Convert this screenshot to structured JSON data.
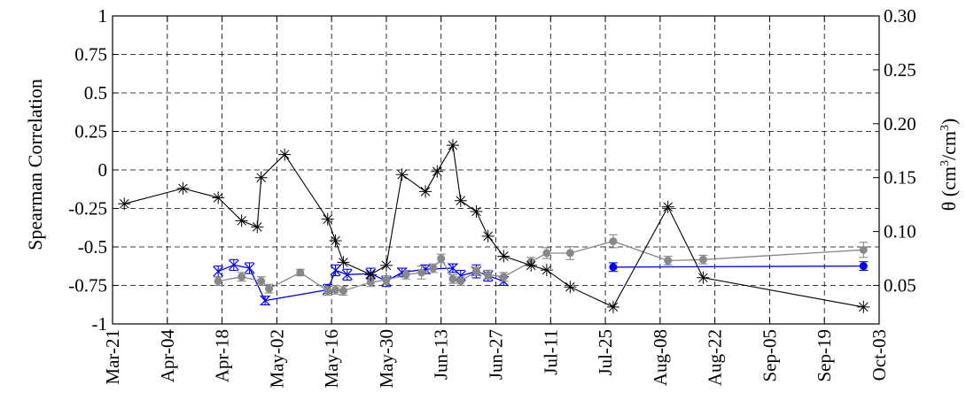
{
  "chart_data": {
    "type": "line",
    "title": "",
    "ylabel": "Spearman Correlation",
    "y2label": "θ (cm³/cm³)",
    "y2label_parts": {
      "base": "θ (cm",
      "exp1": "3",
      "mid": "/cm",
      "exp2": "3",
      "end": ")"
    },
    "xlim": [
      "Mar-21",
      "Oct-03"
    ],
    "ylim": [
      -1,
      1
    ],
    "y2lim": [
      0.0143,
      0.3
    ],
    "grid": true,
    "x_ticks": [
      "Mar-21",
      "Apr-04",
      "Apr-18",
      "May-02",
      "May-16",
      "May-30",
      "Jun-13",
      "Jun-27",
      "Jul-11",
      "Jul-25",
      "Aug-08",
      "Aug-22",
      "Sep-05",
      "Sep-19",
      "Oct-03"
    ],
    "y_ticks": [
      "1",
      "0.75",
      "0.5",
      "0.25",
      "0",
      "-0.25",
      "-0.5",
      "-0.75",
      "-1"
    ],
    "y2_ticks": [
      "0.30",
      "0.25",
      "0.20",
      "0.15",
      "0.10",
      "0.05"
    ],
    "series": [
      {
        "axis": "left",
        "color": "#000000",
        "marker": "asterisk",
        "x": [
          "Mar-24",
          "Apr-08",
          "Apr-17",
          "Apr-23",
          "Apr-27",
          "Apr-28",
          "May-04",
          "May-15",
          "May-17",
          "May-19",
          "May-26",
          "May-30",
          "Jun-03",
          "Jun-09",
          "Jun-12",
          "Jun-16",
          "Jun-18",
          "Jun-22",
          "Jun-25",
          "Jun-29",
          "Jul-06",
          "Jul-10",
          "Jul-16",
          "Jul-27",
          "Aug-10",
          "Aug-19",
          "Sep-29"
        ],
        "values": [
          -0.22,
          -0.12,
          -0.18,
          -0.33,
          -0.37,
          -0.05,
          0.1,
          -0.32,
          -0.46,
          -0.6,
          -0.68,
          -0.62,
          -0.03,
          -0.14,
          -0.01,
          0.16,
          -0.2,
          -0.27,
          -0.43,
          -0.56,
          -0.62,
          -0.65,
          -0.76,
          -0.89,
          -0.24,
          -0.7,
          -0.89
        ]
      },
      {
        "axis": "right",
        "color": "#888888",
        "marker": "dot",
        "x": [
          "Apr-17",
          "Apr-23",
          "Apr-28",
          "Apr-30",
          "May-08",
          "May-15",
          "May-17",
          "May-19",
          "May-26",
          "May-30",
          "Jun-04",
          "Jun-08",
          "Jun-11",
          "Jun-13",
          "Jun-16",
          "Jun-18",
          "Jun-22",
          "Jun-25",
          "Jun-29",
          "Jul-06",
          "Jul-10",
          "Jul-16",
          "Jul-27",
          "Aug-10",
          "Aug-19",
          "Sep-29"
        ],
        "values": [
          0.054,
          0.058,
          0.054,
          0.047,
          0.062,
          0.045,
          0.046,
          0.045,
          0.053,
          0.055,
          0.06,
          0.062,
          0.066,
          0.075,
          0.056,
          0.054,
          0.063,
          0.06,
          0.058,
          0.072,
          0.08,
          0.08,
          0.091,
          0.073,
          0.074,
          0.083
        ],
        "err": [
          0.004,
          0.004,
          0.004,
          0.004,
          0.003,
          0.004,
          0.004,
          0.004,
          0.004,
          0.004,
          0.004,
          0.006,
          0.004,
          0.004,
          0.004,
          0.004,
          0.004,
          0.004,
          0.004,
          0.004,
          0.005,
          0.006,
          0.006,
          0.004,
          0.004,
          0.007
        ]
      },
      {
        "axis": "right",
        "color": "#0000ff",
        "marker": "x",
        "x": [
          "Apr-17",
          "Apr-21",
          "Apr-25",
          "Apr-29",
          "May-15",
          "May-17",
          "May-20",
          "May-26",
          "May-30",
          "Jun-03",
          "Jun-09",
          "Jun-16",
          "Jun-18",
          "Jun-22",
          "Jun-25",
          "Jun-29"
        ],
        "values": [
          0.063,
          0.069,
          0.066,
          0.036,
          0.046,
          0.064,
          0.06,
          0.061,
          0.054,
          0.062,
          0.065,
          0.066,
          0.059,
          0.063,
          0.059,
          0.054
        ],
        "err": [
          0.005,
          0.005,
          0.005,
          0.004,
          0.005,
          0.005,
          0.005,
          0.005,
          0.005,
          0.004,
          0.004,
          0.004,
          0.005,
          0.006,
          0.005,
          0.004
        ]
      },
      {
        "axis": "right",
        "color": "#0000ff",
        "marker": "dot",
        "x": [
          "Jul-27",
          "Sep-29"
        ],
        "values": [
          0.067,
          0.068
        ],
        "err": [
          0.004,
          0.004
        ]
      }
    ]
  }
}
